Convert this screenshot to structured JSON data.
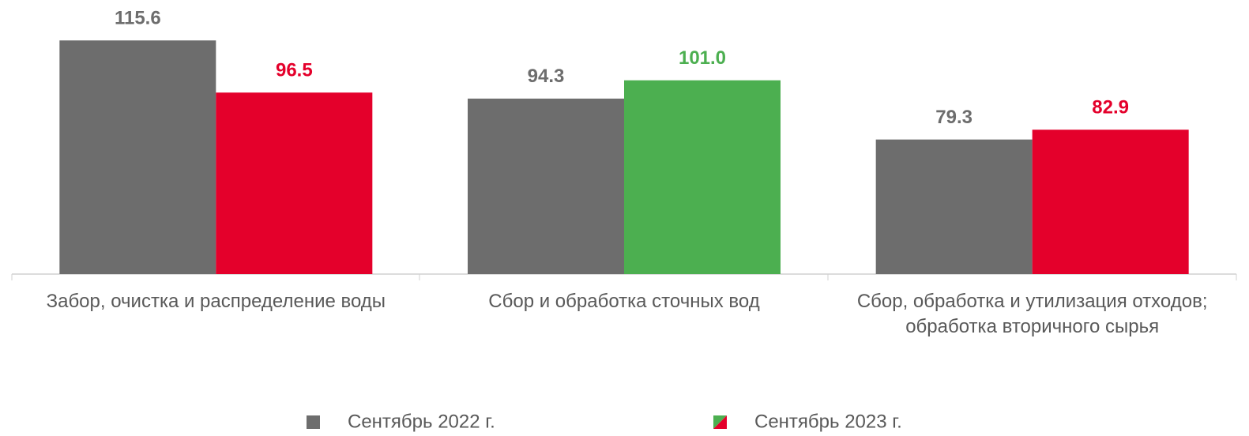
{
  "chart_data": {
    "type": "bar",
    "categories": [
      "Забор, очистка и распределение воды",
      "Сбор и обработка сточных вод",
      "Сбор, обработка и утилизация отходов; обработка вторичного сырья"
    ],
    "series": [
      {
        "name": "Сентябрь 2022 г.",
        "color": "#6d6d6d",
        "values": [
          115.6,
          94.3,
          79.3
        ],
        "value_labels": [
          "115.6",
          "94.3",
          "79.3"
        ]
      },
      {
        "name": "Сентябрь 2023 г.",
        "colors": [
          "#e4002b",
          "#4caf50",
          "#e4002b"
        ],
        "values": [
          96.5,
          101.0,
          82.9
        ],
        "value_labels": [
          "96.5",
          "101.0",
          "82.9"
        ]
      }
    ],
    "ylim": [
      30,
      120
    ]
  }
}
